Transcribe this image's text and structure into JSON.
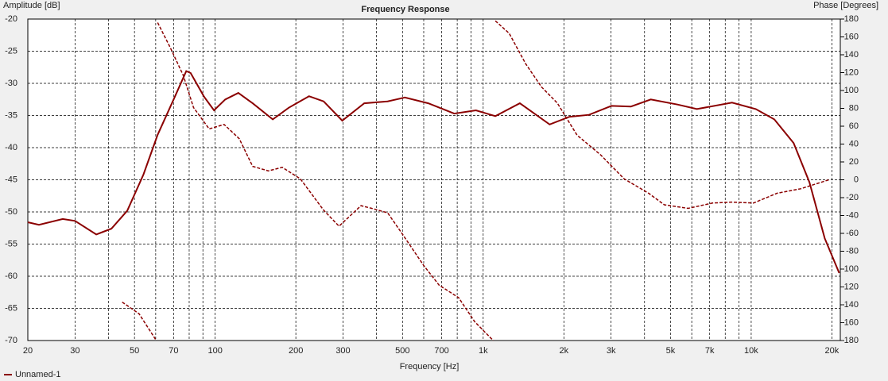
{
  "chart_data": {
    "type": "line",
    "title": "Frequency Response",
    "ylabel": "Amplitude [dB]",
    "y2label": "Phase [Degrees]",
    "xlabel": "Frequency [Hz]",
    "xscale": "log",
    "grid": true,
    "legend": "bottom-left",
    "xlim": [
      20,
      21500
    ],
    "ylim": [
      -70,
      -20
    ],
    "y2lim": [
      -180,
      180
    ],
    "xticks": [
      20,
      30,
      50,
      70,
      100,
      200,
      300,
      500,
      700,
      {
        "value": 1000,
        "label": "1k"
      },
      {
        "value": 2000,
        "label": "2k"
      },
      {
        "value": 3000,
        "label": "3k"
      },
      {
        "value": 5000,
        "label": "5k"
      },
      {
        "value": 7000,
        "label": "7k"
      },
      {
        "value": 10000,
        "label": "10k"
      },
      {
        "value": 20000,
        "label": "20k"
      }
    ],
    "xminorticks": [
      40,
      60,
      80,
      90,
      400,
      600,
      800,
      900,
      4000,
      6000,
      8000,
      9000
    ],
    "yticks": [
      -20,
      -25,
      -30,
      -35,
      -40,
      -45,
      -50,
      -55,
      -60,
      -65,
      -70
    ],
    "y2ticks": [
      180,
      160,
      140,
      120,
      100,
      80,
      60,
      40,
      20,
      0,
      -20,
      -40,
      -60,
      -80,
      -100,
      -120,
      -140,
      -160,
      -180
    ],
    "series": [
      {
        "name": "Unnamed-1",
        "color": "#8b0000",
        "dashed": false,
        "x": [
          20,
          22,
          27,
          30,
          36,
          41,
          47,
          54,
          61,
          70,
          78,
          81,
          91,
          99,
          109,
          122,
          138,
          164,
          188,
          224,
          254,
          298,
          360,
          440,
          510,
          624,
          780,
          940,
          1110,
          1370,
          1770,
          2100,
          2480,
          3010,
          3560,
          4220,
          5310,
          6270,
          8480,
          10400,
          12200,
          14400,
          16500,
          18800,
          21300
        ],
        "values": [
          -51.6,
          -52,
          -51.1,
          -51.4,
          -53.5,
          -52.6,
          -49.8,
          -44.2,
          -38,
          -32.5,
          -28.1,
          -28.4,
          -32.1,
          -34.2,
          -32.5,
          -31.5,
          -33.1,
          -35.6,
          -33.8,
          -32,
          -32.8,
          -35.8,
          -33.1,
          -32.8,
          -32.2,
          -33.1,
          -34.7,
          -34.2,
          -35.1,
          -33.1,
          -36.4,
          -35.2,
          -34.9,
          -33.5,
          -33.6,
          -32.5,
          -33.3,
          -34,
          -33,
          -34,
          -35.6,
          -39.3,
          -45.4,
          -54.1,
          -59.5
        ]
      },
      {
        "color": "#8b0000",
        "dashed": true,
        "axis": "y2",
        "x": [
          45,
          52,
          60,
          null,
          61,
          68,
          76,
          83,
          95,
          108,
          123,
          138,
          158,
          178,
          208,
          254,
          290,
          312,
          350,
          384,
          440,
          500,
          600,
          685,
          810,
          930,
          1090,
          null,
          1110,
          1250,
          1440,
          1650,
          1890,
          2240,
          2740,
          3360,
          4140,
          4740,
          5820,
          7170,
          8500,
          10200,
          12500,
          15300,
          19500
        ],
        "values": [
          -137,
          -150,
          -179,
          null,
          176,
          148,
          117,
          81,
          57,
          62,
          46,
          15,
          10,
          14,
          1,
          -34,
          -52,
          -43,
          -29,
          -32,
          -37,
          -61,
          -96,
          -118,
          -132,
          -159,
          -180,
          null,
          178,
          164,
          130,
          104,
          86,
          50,
          28,
          1,
          -15,
          -28,
          -32,
          -26,
          -25,
          -26,
          -15,
          -10,
          0
        ]
      }
    ]
  }
}
